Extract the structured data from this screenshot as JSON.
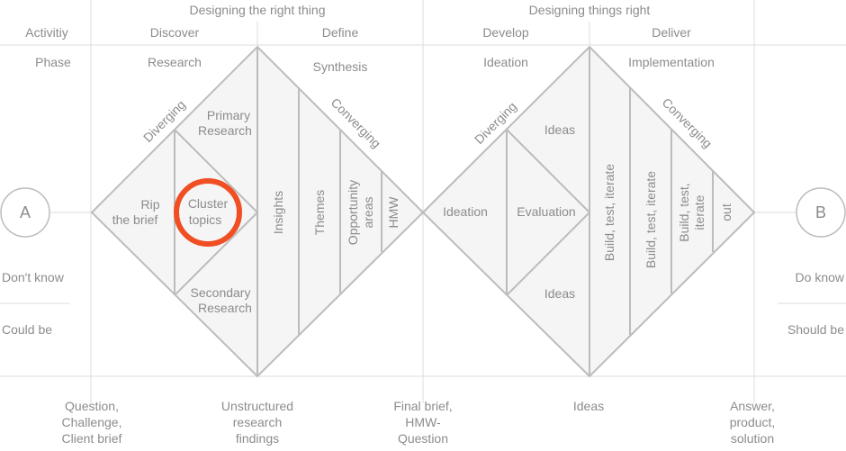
{
  "colors": {
    "line": "#bcbcbc",
    "grid": "#dcdcdc",
    "text": "#8c8c8c",
    "fill": "#f5f5f5",
    "highlight": "#f04e23"
  },
  "header": {
    "top_left": "Designing the right thing",
    "top_right": "Designing things right",
    "row_activities": "Activitiy",
    "row_phase": "Phase"
  },
  "stages": [
    {
      "activity": "Discover",
      "phase": "Research"
    },
    {
      "activity": "Define",
      "phase": "Synthesis"
    },
    {
      "activity": "Develop",
      "phase": "Ideation"
    },
    {
      "activity": "Deliver",
      "phase": "Implementation"
    }
  ],
  "endpoints": {
    "start": "A",
    "end": "B"
  },
  "side_labels": {
    "left_top": "Don't know",
    "left_bottom": "Could be",
    "right_top": "Do know",
    "right_bottom": "Should be"
  },
  "diamond1": {
    "diverging": "Diverging",
    "converging": "Converging",
    "rip_brief": [
      "Rip",
      "the brief"
    ],
    "cluster_topics": [
      "Cluster",
      "topics"
    ],
    "primary_research": [
      "Primary",
      "Research"
    ],
    "secondary_research": [
      "Secondary",
      "Research"
    ],
    "insights": "Insights",
    "themes": "Themes",
    "opportunity_areas": [
      "Opportunity",
      "areas"
    ],
    "hmw": "HMW"
  },
  "diamond2": {
    "diverging": "Diverging",
    "converging": "Converging",
    "ideation": "Ideation",
    "evaluation": "Evaluation",
    "ideas_top": "Ideas",
    "ideas_bottom": "Ideas",
    "build1": "Build, test, iterate",
    "build2": "Build, test, iterate",
    "build3": [
      "Build, test,",
      "iterate"
    ],
    "out": "out"
  },
  "outputs": [
    [
      "Question,",
      "Challenge,",
      "Client brief"
    ],
    [
      "Unstructured",
      "research",
      "findings"
    ],
    [
      "Final brief,",
      "HMW-",
      "Question"
    ],
    [
      "Ideas"
    ],
    [
      "Answer,",
      "product,",
      "solution"
    ]
  ]
}
